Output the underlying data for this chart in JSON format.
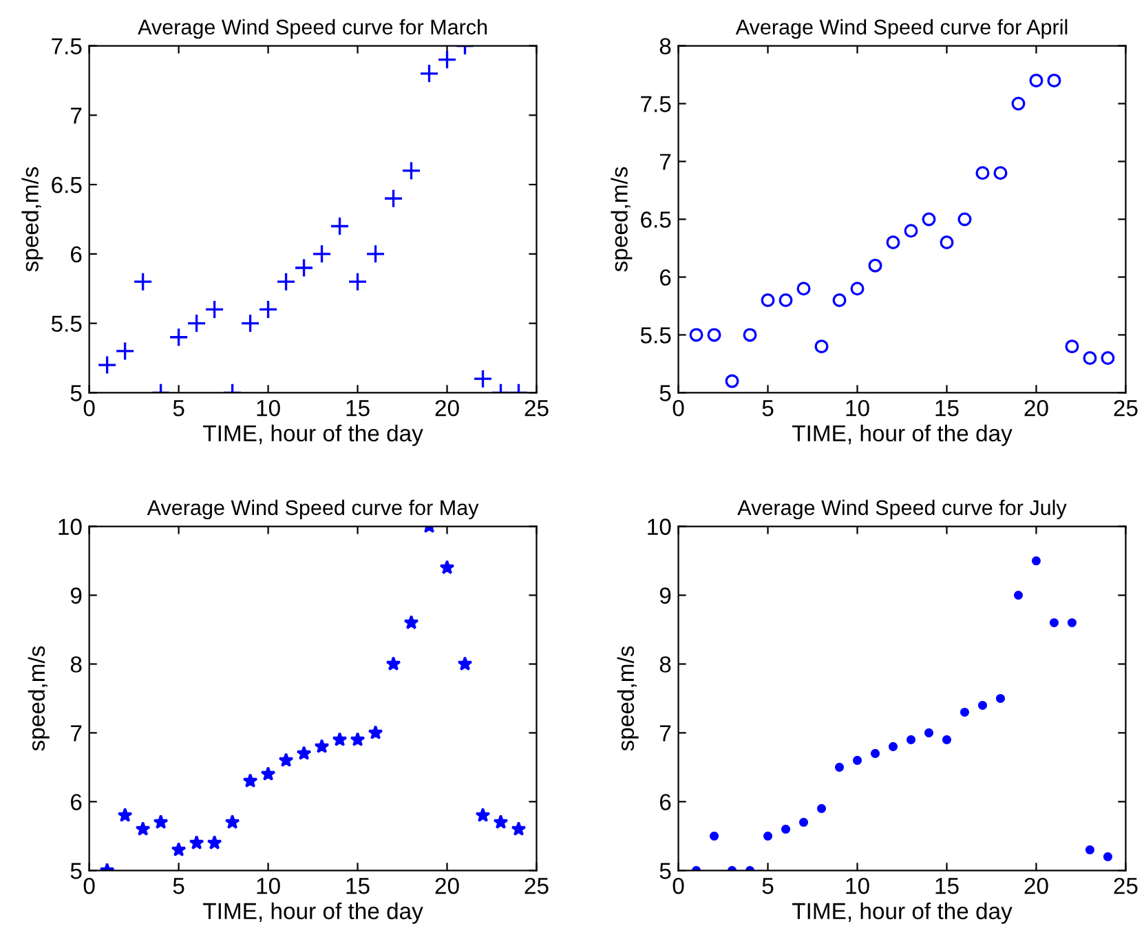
{
  "chart_data": [
    {
      "type": "scatter",
      "title": "Average Wind Speed curve for March",
      "xlabel": "TIME, hour of the day",
      "ylabel": "speed,m/s",
      "marker": "cross",
      "grid": false,
      "xlim": [
        0,
        25
      ],
      "xticks": [
        0,
        5,
        10,
        15,
        20,
        25
      ],
      "ylim": [
        5,
        7.5
      ],
      "yticks": [
        5,
        5.5,
        6,
        6.5,
        7,
        7.5
      ],
      "x": [
        1,
        2,
        3,
        4,
        5,
        6,
        7,
        8,
        9,
        10,
        11,
        12,
        13,
        14,
        15,
        16,
        17,
        18,
        19,
        20,
        21,
        22,
        23,
        24
      ],
      "series": [
        {
          "color": "#0000ff",
          "values": [
            5.2,
            5.3,
            5.8,
            5.0,
            5.4,
            5.5,
            5.6,
            5.0,
            5.5,
            5.6,
            5.8,
            5.9,
            6.0,
            6.2,
            5.8,
            6.0,
            6.4,
            6.6,
            7.3,
            7.4,
            7.5,
            5.1,
            5.0,
            5.0
          ]
        }
      ]
    },
    {
      "type": "scatter",
      "title": "Average Wind Speed curve for April",
      "xlabel": "TIME, hour of the day",
      "ylabel": "speed,m/s",
      "marker": "circle",
      "grid": false,
      "xlim": [
        0,
        25
      ],
      "xticks": [
        0,
        5,
        10,
        15,
        20,
        25
      ],
      "ylim": [
        5,
        8
      ],
      "yticks": [
        5,
        5.5,
        6,
        6.5,
        7,
        7.5,
        8
      ],
      "x": [
        1,
        2,
        3,
        4,
        5,
        6,
        7,
        8,
        9,
        10,
        11,
        12,
        13,
        14,
        15,
        16,
        17,
        18,
        19,
        20,
        21,
        22,
        23,
        24
      ],
      "series": [
        {
          "color": "#0000ff",
          "values": [
            5.5,
            5.5,
            5.1,
            5.5,
            5.8,
            5.8,
            5.9,
            5.4,
            5.8,
            5.9,
            6.1,
            6.3,
            6.4,
            6.5,
            6.3,
            6.5,
            6.9,
            6.9,
            7.5,
            7.7,
            7.7,
            5.4,
            5.3,
            5.3
          ]
        }
      ]
    },
    {
      "type": "scatter",
      "title": "Average Wind Speed curve for May",
      "xlabel": "TIME, hour of the day",
      "ylabel": "speed,m/s",
      "marker": "star",
      "grid": false,
      "xlim": [
        0,
        25
      ],
      "xticks": [
        0,
        5,
        10,
        15,
        20,
        25
      ],
      "ylim": [
        5,
        10
      ],
      "yticks": [
        5,
        6,
        7,
        8,
        9,
        10
      ],
      "x": [
        1,
        2,
        3,
        4,
        5,
        6,
        7,
        8,
        9,
        10,
        11,
        12,
        13,
        14,
        15,
        16,
        17,
        18,
        19,
        20,
        21,
        22,
        23,
        24
      ],
      "series": [
        {
          "color": "#0000ff",
          "values": [
            5.0,
            5.8,
            5.6,
            5.7,
            5.3,
            5.4,
            5.4,
            5.7,
            6.3,
            6.4,
            6.6,
            6.7,
            6.8,
            6.9,
            6.9,
            7.0,
            8.0,
            8.6,
            10.0,
            9.4,
            8.0,
            5.8,
            5.7,
            5.6
          ]
        }
      ]
    },
    {
      "type": "scatter",
      "title": "Average Wind Speed curve for July",
      "xlabel": "TIME, hour of the day",
      "ylabel": "speed,m/s",
      "marker": "point",
      "grid": false,
      "xlim": [
        0,
        25
      ],
      "xticks": [
        0,
        5,
        10,
        15,
        20,
        25
      ],
      "ylim": [
        5,
        10
      ],
      "yticks": [
        5,
        6,
        7,
        8,
        9,
        10
      ],
      "x": [
        1,
        2,
        3,
        4,
        5,
        6,
        7,
        8,
        9,
        10,
        11,
        12,
        13,
        14,
        15,
        16,
        17,
        18,
        19,
        20,
        21,
        22,
        23,
        24
      ],
      "series": [
        {
          "color": "#0000ff",
          "values": [
            5.0,
            5.5,
            5.0,
            5.0,
            5.5,
            5.6,
            5.7,
            5.9,
            6.5,
            6.6,
            6.7,
            6.8,
            6.9,
            7.0,
            6.9,
            7.3,
            7.4,
            7.5,
            9.0,
            9.5,
            8.6,
            8.6,
            5.3,
            5.2
          ]
        }
      ]
    }
  ]
}
